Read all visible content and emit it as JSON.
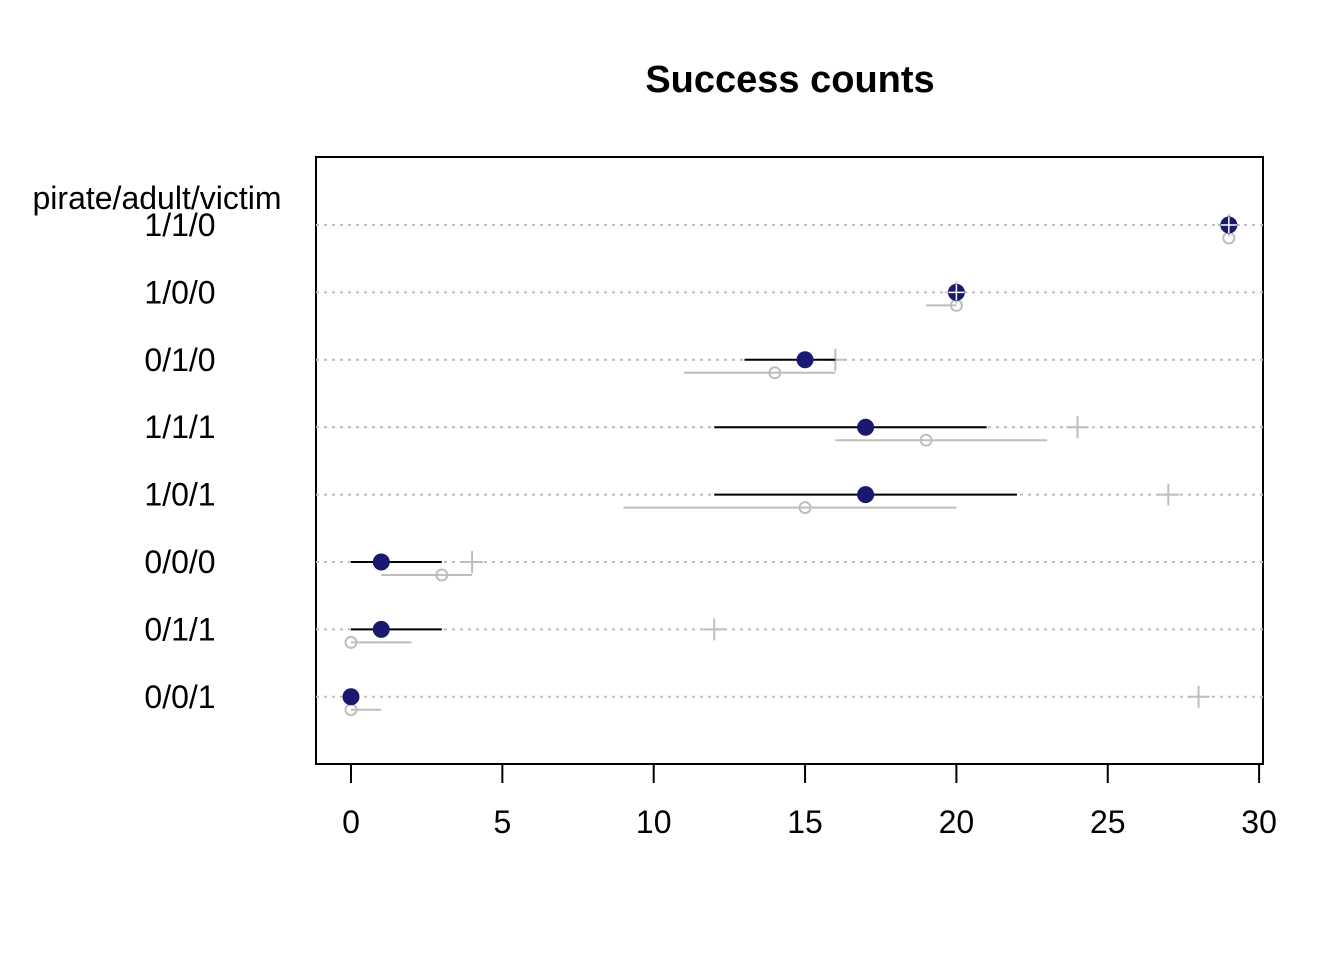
{
  "chart_data": {
    "type": "dotplot-intervals",
    "title": "Success counts",
    "group_header": "pirate/adult/victim",
    "xlim": [
      0,
      30
    ],
    "x_ticks": [
      0,
      5,
      10,
      15,
      20,
      25,
      30
    ],
    "gridlines": "horizontal dotted",
    "categories": [
      "1/1/0",
      "1/0/0",
      "0/1/0",
      "1/1/1",
      "1/0/1",
      "0/0/0",
      "0/1/1",
      "0/0/1"
    ],
    "series": [
      {
        "marker": "filled-circle",
        "color": "#191970",
        "values": [
          29,
          20,
          15,
          17,
          17,
          1,
          1,
          0
        ],
        "intervals": [
          [
            29,
            29
          ],
          [
            20,
            20
          ],
          [
            13,
            16
          ],
          [
            12,
            21
          ],
          [
            12,
            22
          ],
          [
            0,
            3
          ],
          [
            0,
            3
          ],
          [
            0,
            0
          ]
        ]
      },
      {
        "marker": "open-circle",
        "color": "#bebebe",
        "values": [
          29,
          20,
          14,
          19,
          15,
          3,
          0,
          0
        ],
        "intervals": [
          [
            29,
            29
          ],
          [
            19,
            20
          ],
          [
            11,
            16
          ],
          [
            16,
            23
          ],
          [
            9,
            20
          ],
          [
            1,
            4
          ],
          [
            0,
            2
          ],
          [
            0,
            1
          ]
        ]
      },
      {
        "marker": "plus",
        "color": "#bebebe",
        "values": [
          29,
          20,
          16,
          24,
          27,
          4,
          12,
          28
        ]
      }
    ]
  }
}
